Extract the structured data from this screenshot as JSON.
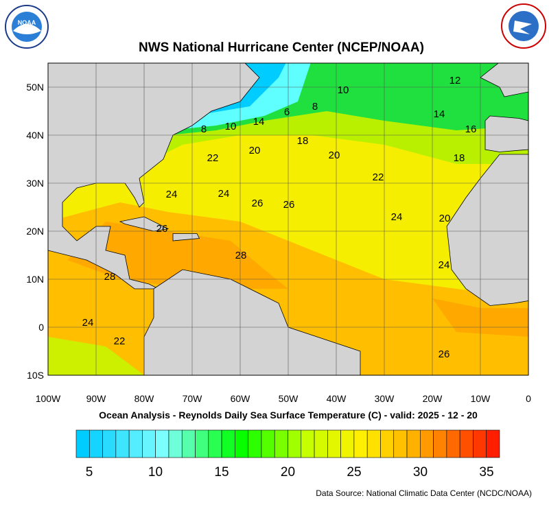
{
  "title": "NWS National Hurricane Center (NCEP/NOAA)",
  "lon_labels": [
    "100W",
    "90W",
    "80W",
    "70W",
    "60W",
    "50W",
    "40W",
    "30W",
    "20W",
    "10W",
    "0"
  ],
  "lat_labels": [
    "50N",
    "40N",
    "30N",
    "20N",
    "10N",
    "0",
    "10S"
  ],
  "contour_labels": [
    "10",
    "12",
    "8",
    "6",
    "14",
    "10",
    "8",
    "14",
    "16",
    "18",
    "20",
    "22",
    "20",
    "18",
    "22",
    "24",
    "24",
    "26",
    "26",
    "24",
    "20",
    "26",
    "28",
    "28",
    "24",
    "24",
    "22",
    "26"
  ],
  "caption": "Ocean Analysis - Reynolds Daily Sea Surface Temperature (C) - valid: 2025 - 12 - 20",
  "colorbar_labels": [
    "5",
    "10",
    "15",
    "20",
    "25",
    "30",
    "35"
  ],
  "source": "Data Source: National Climatic Data Center (NCDC/NOAA)"
}
